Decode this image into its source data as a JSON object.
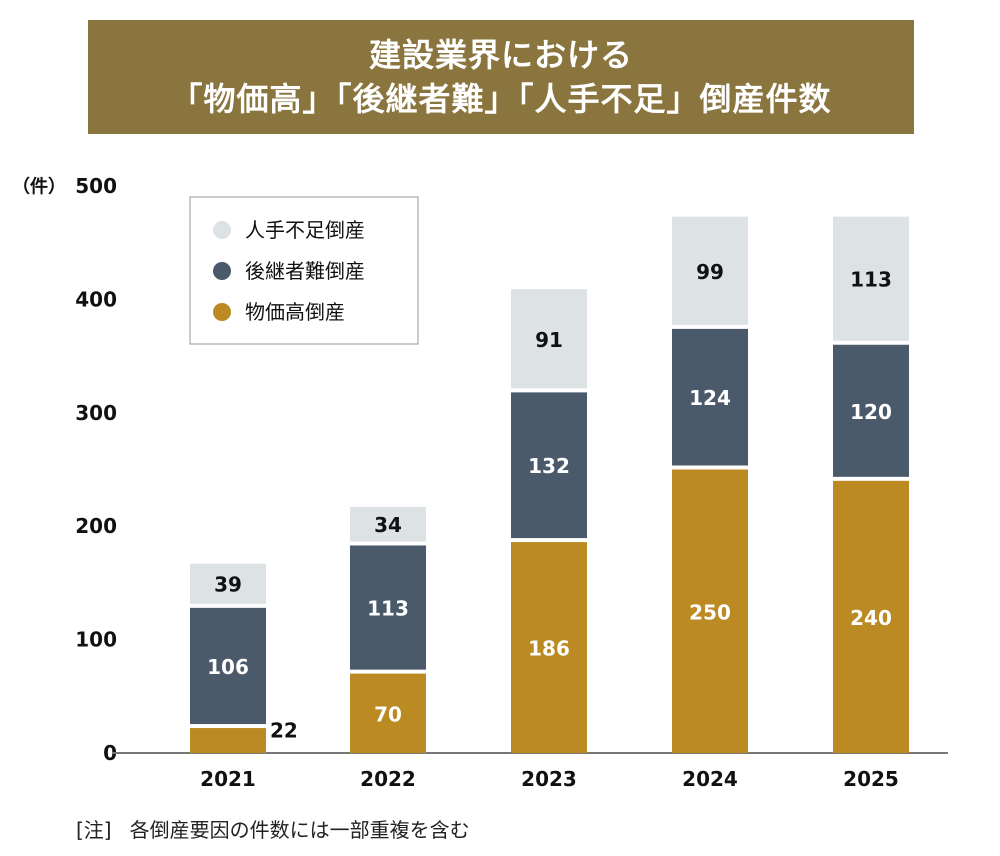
{
  "title": {
    "line1": "建設業界における",
    "line2": "「物価高」「後継者難」「人手不足」倒産件数"
  },
  "note": {
    "prefix": "[注]",
    "text": "各倒産要因の件数には一部重複を含む"
  },
  "colors": {
    "title_bg": "#8a753e",
    "bussika": "#bb8a22",
    "koukeisha": "#4a5a6b",
    "hitode": "#dde2e5"
  },
  "chart_data": {
    "type": "bar",
    "stacked": true,
    "categories": [
      "2021",
      "2022",
      "2023",
      "2024",
      "2025"
    ],
    "series": [
      {
        "name": "物価高倒産",
        "values": [
          22,
          70,
          186,
          250,
          240
        ],
        "color": "#bb8a22",
        "label_color": "#ffffff"
      },
      {
        "name": "後継者難倒産",
        "values": [
          106,
          113,
          132,
          124,
          120
        ],
        "color": "#4a5a6b",
        "label_color": "#ffffff"
      },
      {
        "name": "人手不足倒産",
        "values": [
          39,
          34,
          91,
          99,
          113
        ],
        "color": "#dde2e5",
        "label_color": "#111111"
      }
    ],
    "ylabel": "（件）",
    "ylim": [
      0,
      500
    ],
    "yticks": [
      0,
      100,
      200,
      300,
      400,
      500
    ],
    "legend_order": [
      "人手不足倒産",
      "後継者難倒産",
      "物価高倒産"
    ],
    "legend_position": "top-left",
    "grid": false
  }
}
